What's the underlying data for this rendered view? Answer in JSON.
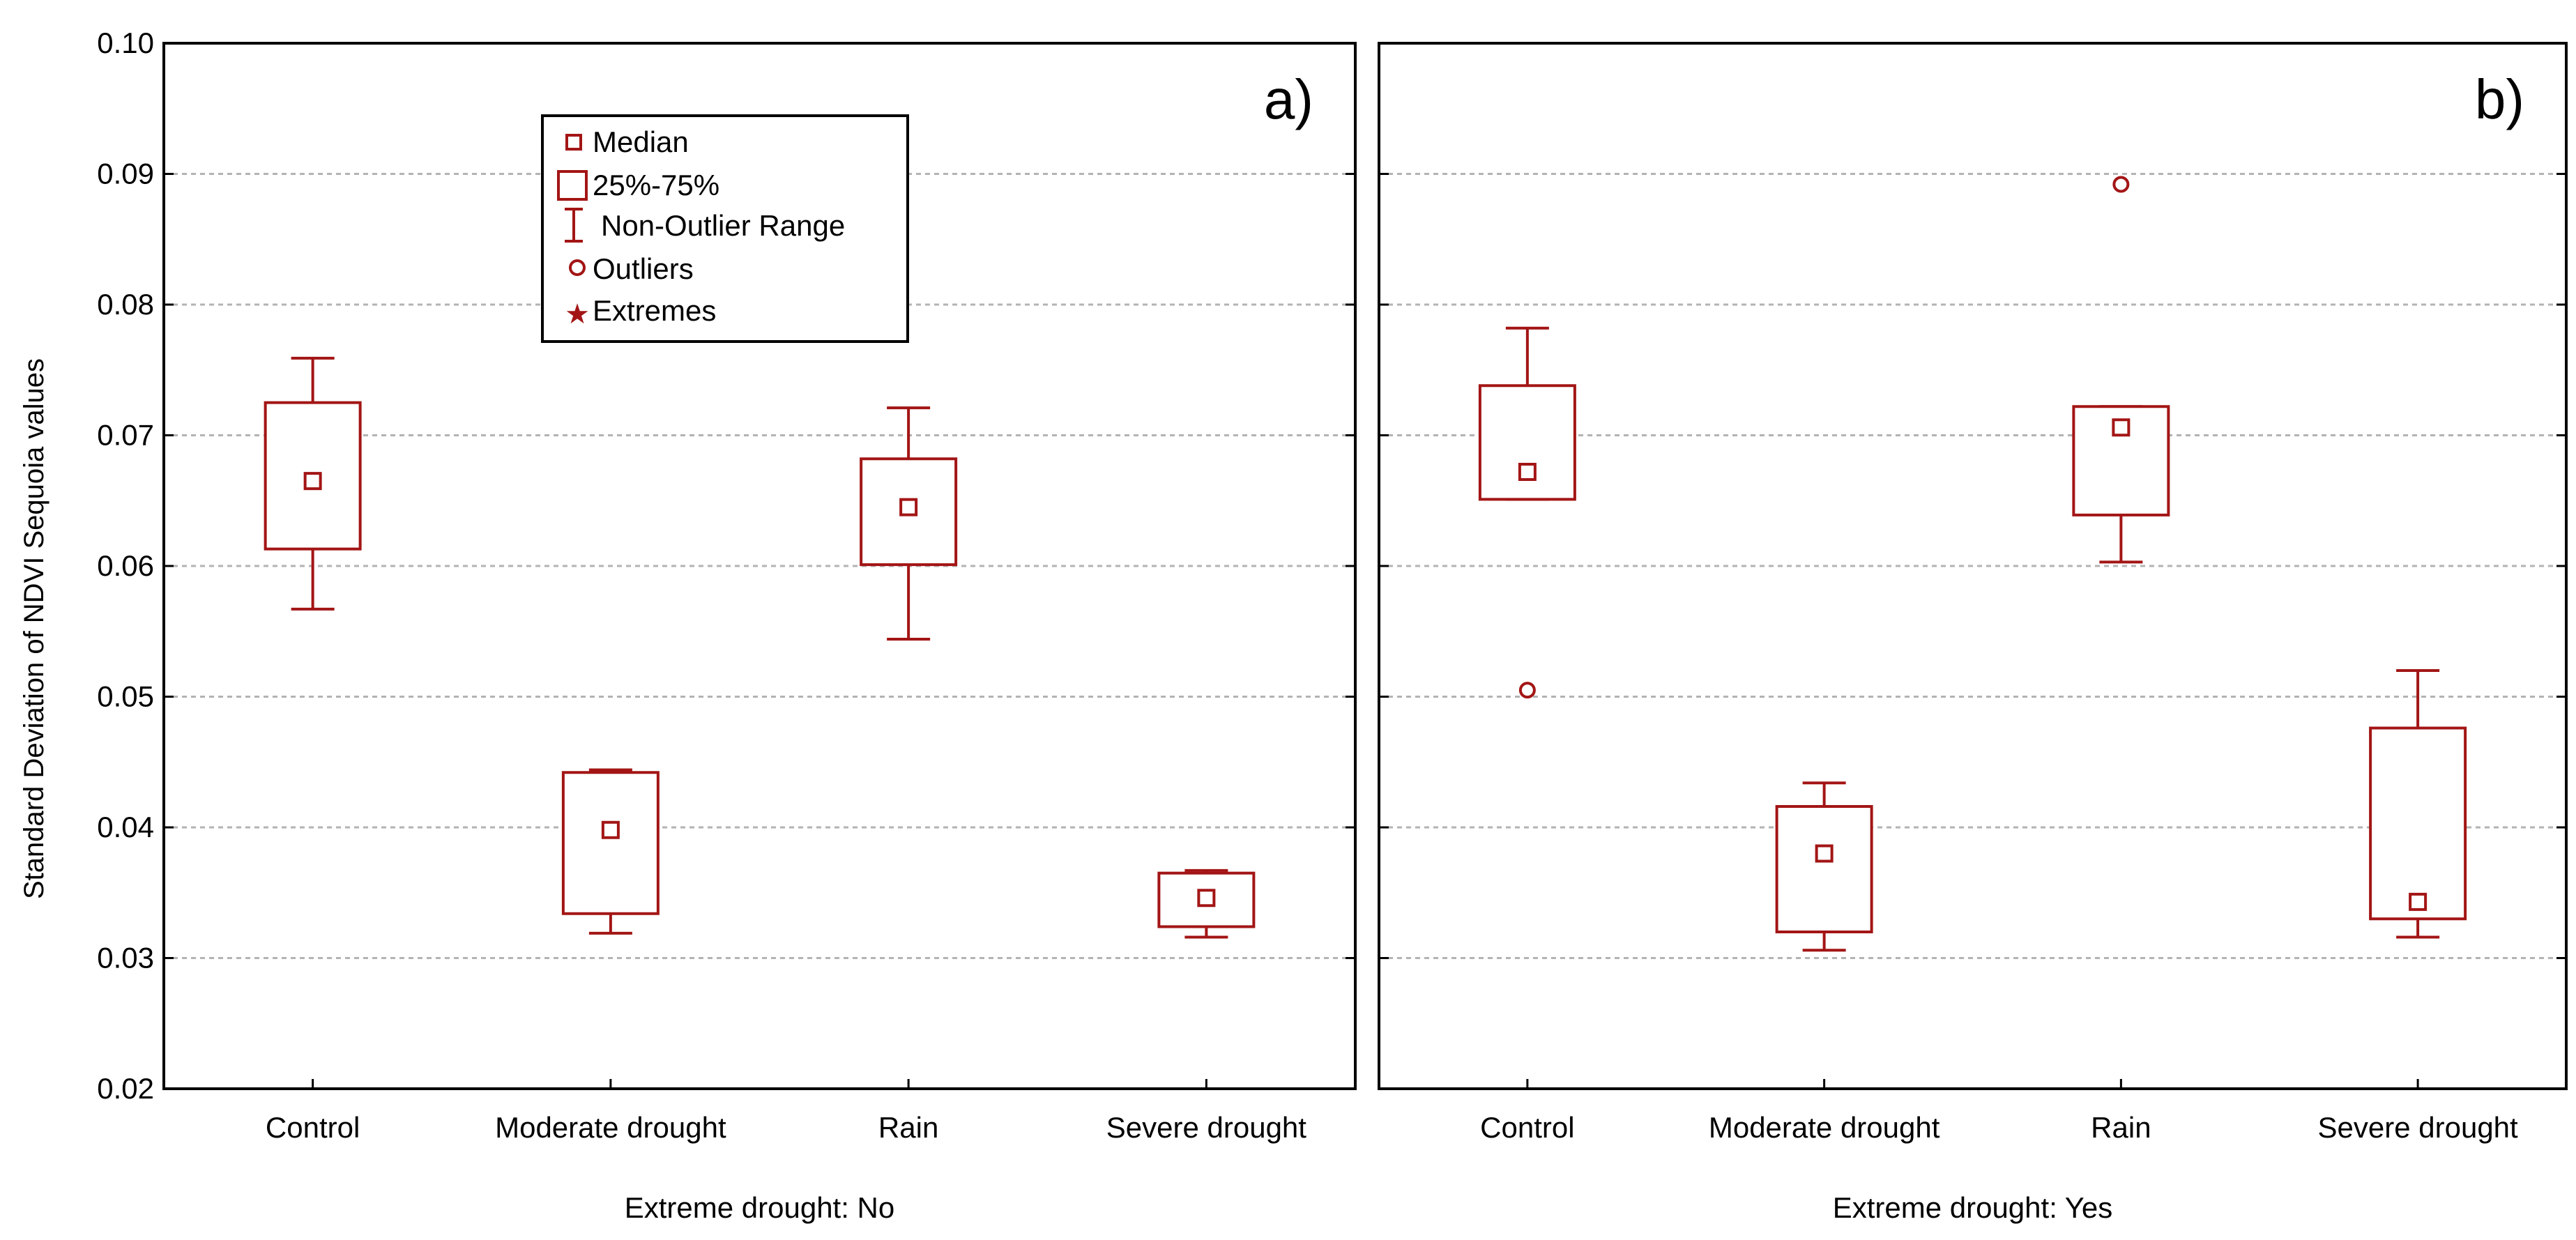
{
  "colors": {
    "box": "#a31515",
    "grid": "#b3b3b3",
    "axis": "#000000",
    "background": "#ffffff"
  },
  "chart_data": {
    "type": "box",
    "ylabel": "Standard Deviation of NDVI Sequoia values",
    "ylim": [
      0.02,
      0.1
    ],
    "yticks": [
      "0.02",
      "0.03",
      "0.04",
      "0.05",
      "0.06",
      "0.07",
      "0.08",
      "0.09",
      "0.10"
    ],
    "categories": [
      "Control",
      "Moderate drought",
      "Rain",
      "Severe drought"
    ],
    "legend": {
      "placement": "top-left of panel a",
      "items": [
        {
          "icon": "median-marker",
          "label": "Median"
        },
        {
          "icon": "box",
          "label": "25%-75%"
        },
        {
          "icon": "whisker",
          "label": "Non-Outlier Range"
        },
        {
          "icon": "outlier-circle",
          "label": "Outliers"
        },
        {
          "icon": "extreme-star",
          "label": "Extremes"
        }
      ]
    },
    "panels": [
      {
        "tag": "a)",
        "xlabel": "Extreme drought: No",
        "boxes": [
          {
            "category": "Control",
            "median": 0.0665,
            "q1": 0.0613,
            "q3": 0.0725,
            "whisker_low": 0.0567,
            "whisker_high": 0.0759,
            "outliers": []
          },
          {
            "category": "Moderate drought",
            "median": 0.0398,
            "q1": 0.0334,
            "q3": 0.0442,
            "whisker_low": 0.0319,
            "whisker_high": 0.0444,
            "outliers": []
          },
          {
            "category": "Rain",
            "median": 0.0645,
            "q1": 0.0601,
            "q3": 0.0682,
            "whisker_low": 0.0544,
            "whisker_high": 0.0721,
            "outliers": []
          },
          {
            "category": "Severe drought",
            "median": 0.0346,
            "q1": 0.0324,
            "q3": 0.0365,
            "whisker_low": 0.0316,
            "whisker_high": 0.0367,
            "outliers": []
          }
        ]
      },
      {
        "tag": "b)",
        "xlabel": "Extreme drought: Yes",
        "boxes": [
          {
            "category": "Control",
            "median": 0.0672,
            "q1": 0.0651,
            "q3": 0.0738,
            "whisker_low": 0.0651,
            "whisker_high": 0.0782,
            "outliers": [
              0.0505
            ]
          },
          {
            "category": "Moderate drought",
            "median": 0.038,
            "q1": 0.032,
            "q3": 0.0416,
            "whisker_low": 0.0306,
            "whisker_high": 0.0434,
            "outliers": []
          },
          {
            "category": "Rain",
            "median": 0.0706,
            "q1": 0.0639,
            "q3": 0.0722,
            "whisker_low": 0.0603,
            "whisker_high": 0.0722,
            "outliers": [
              0.0892
            ]
          },
          {
            "category": "Severe drought",
            "median": 0.0343,
            "q1": 0.033,
            "q3": 0.0476,
            "whisker_low": 0.0316,
            "whisker_high": 0.052,
            "outliers": []
          }
        ]
      }
    ]
  }
}
